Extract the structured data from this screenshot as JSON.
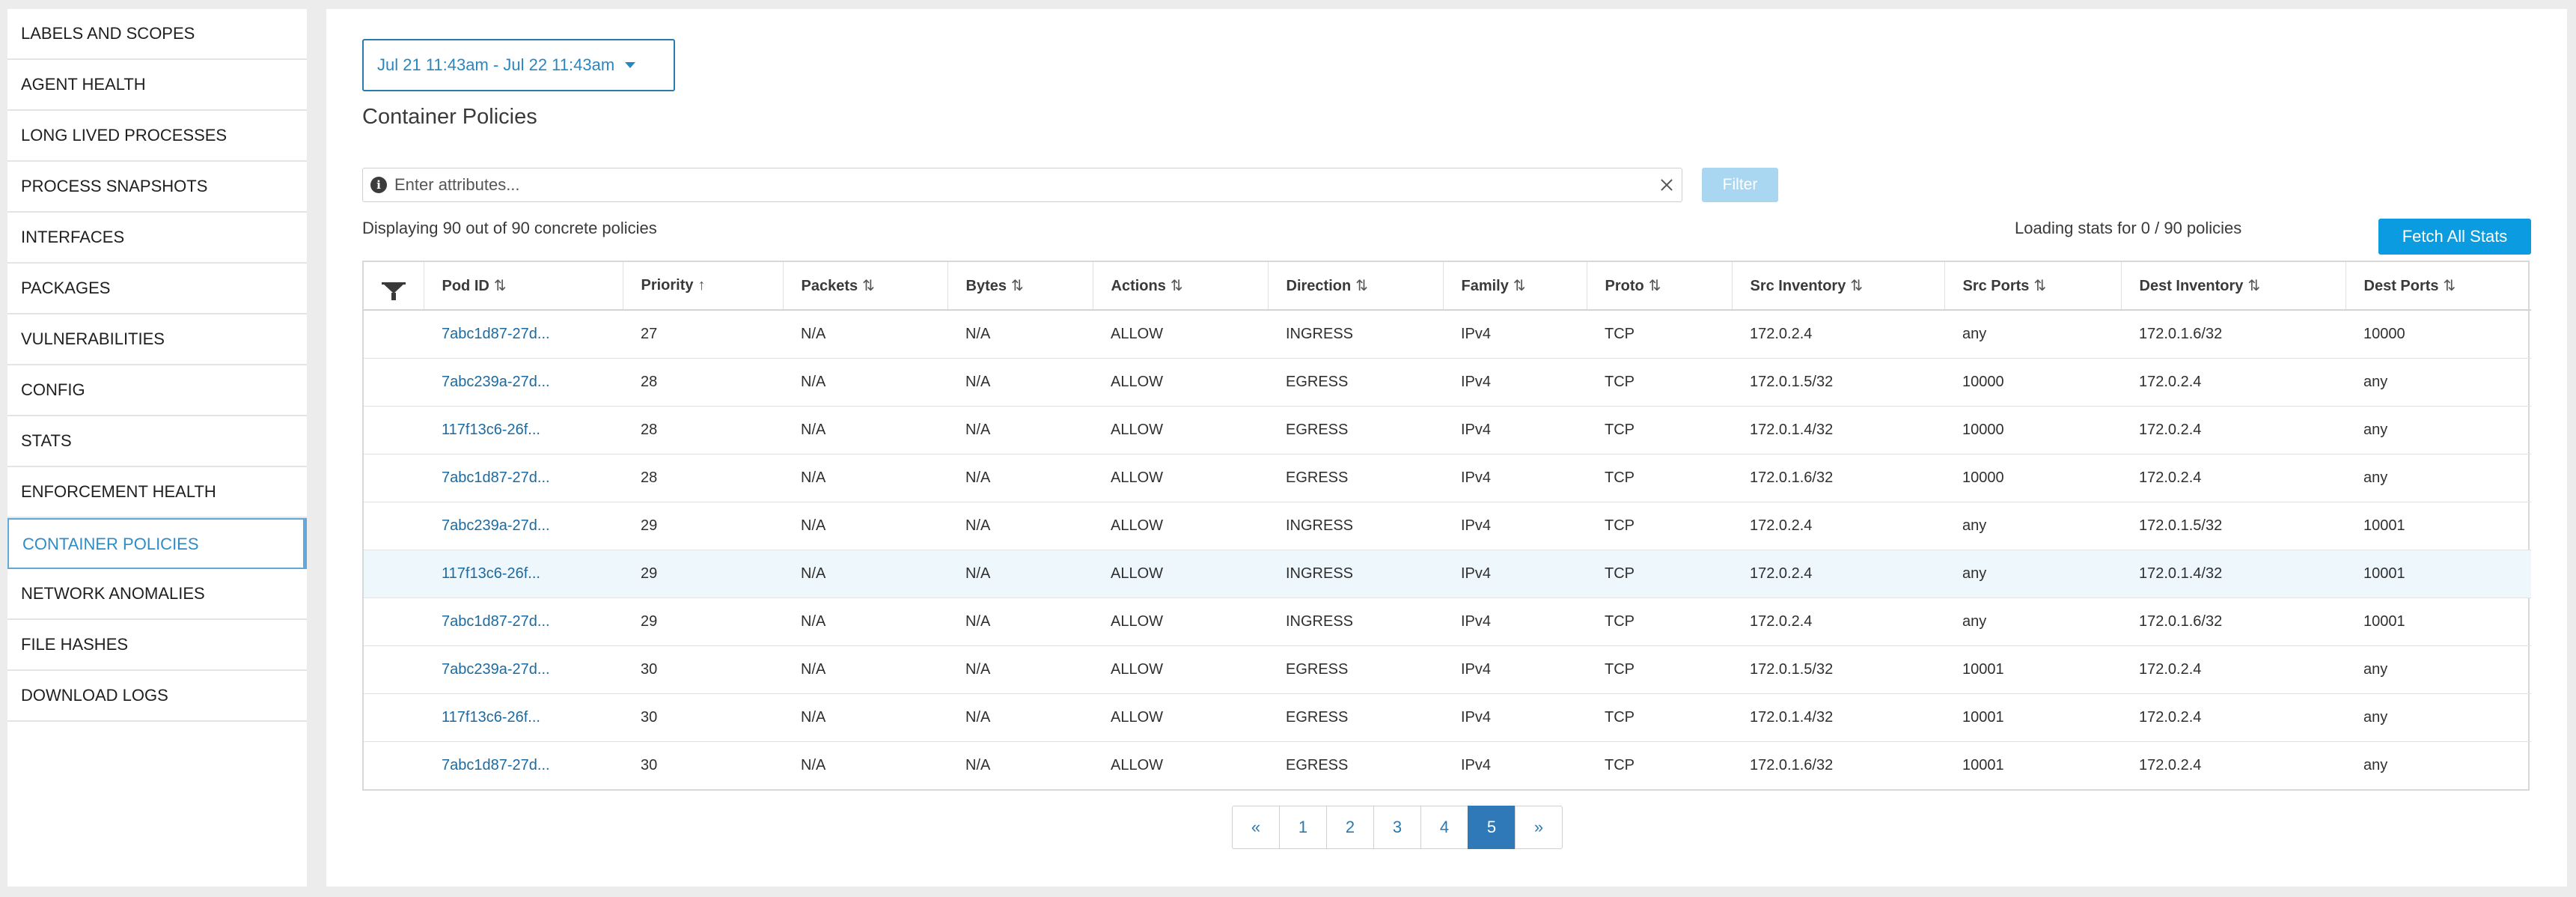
{
  "sidebar": {
    "items": [
      {
        "label": "LABELS AND SCOPES",
        "active": false
      },
      {
        "label": "AGENT HEALTH",
        "active": false
      },
      {
        "label": "LONG LIVED PROCESSES",
        "active": false
      },
      {
        "label": "PROCESS SNAPSHOTS",
        "active": false
      },
      {
        "label": "INTERFACES",
        "active": false
      },
      {
        "label": "PACKAGES",
        "active": false
      },
      {
        "label": "VULNERABILITIES",
        "active": false
      },
      {
        "label": "CONFIG",
        "active": false
      },
      {
        "label": "STATS",
        "active": false
      },
      {
        "label": "ENFORCEMENT HEALTH",
        "active": false
      },
      {
        "label": "CONTAINER POLICIES",
        "active": true
      },
      {
        "label": "NETWORK ANOMALIES",
        "active": false
      },
      {
        "label": "FILE HASHES",
        "active": false
      },
      {
        "label": "DOWNLOAD LOGS",
        "active": false
      }
    ]
  },
  "main": {
    "date_range": "Jul 21 11:43am - Jul 22 11:43am",
    "title": "Container Policies",
    "search_placeholder": "Enter attributes...",
    "filter_label": "Filter",
    "display_count": "Displaying 90 out of 90 concrete policies",
    "loading_stats": "Loading stats for 0 / 90 policies",
    "fetch_label": "Fetch All Stats"
  },
  "table": {
    "columns": [
      {
        "label": "Pod ID",
        "sort": "⇅"
      },
      {
        "label": "Priority",
        "sort": "↑"
      },
      {
        "label": "Packets",
        "sort": "⇅"
      },
      {
        "label": "Bytes",
        "sort": "⇅"
      },
      {
        "label": "Actions",
        "sort": "⇅"
      },
      {
        "label": "Direction",
        "sort": "⇅"
      },
      {
        "label": "Family",
        "sort": "⇅"
      },
      {
        "label": "Proto",
        "sort": "⇅"
      },
      {
        "label": "Src Inventory",
        "sort": "⇅"
      },
      {
        "label": "Src Ports",
        "sort": "⇅"
      },
      {
        "label": "Dest Inventory",
        "sort": "⇅"
      },
      {
        "label": "Dest Ports",
        "sort": "⇅"
      }
    ],
    "rows": [
      {
        "highlight": false,
        "cells": [
          "7abc1d87-27d...",
          "27",
          "N/A",
          "N/A",
          "ALLOW",
          "INGRESS",
          "IPv4",
          "TCP",
          "172.0.2.4",
          "any",
          "172.0.1.6/32",
          "10000"
        ]
      },
      {
        "highlight": false,
        "cells": [
          "7abc239a-27d...",
          "28",
          "N/A",
          "N/A",
          "ALLOW",
          "EGRESS",
          "IPv4",
          "TCP",
          "172.0.1.5/32",
          "10000",
          "172.0.2.4",
          "any"
        ]
      },
      {
        "highlight": false,
        "cells": [
          "117f13c6-26f...",
          "28",
          "N/A",
          "N/A",
          "ALLOW",
          "EGRESS",
          "IPv4",
          "TCP",
          "172.0.1.4/32",
          "10000",
          "172.0.2.4",
          "any"
        ]
      },
      {
        "highlight": false,
        "cells": [
          "7abc1d87-27d...",
          "28",
          "N/A",
          "N/A",
          "ALLOW",
          "EGRESS",
          "IPv4",
          "TCP",
          "172.0.1.6/32",
          "10000",
          "172.0.2.4",
          "any"
        ]
      },
      {
        "highlight": false,
        "cells": [
          "7abc239a-27d...",
          "29",
          "N/A",
          "N/A",
          "ALLOW",
          "INGRESS",
          "IPv4",
          "TCP",
          "172.0.2.4",
          "any",
          "172.0.1.5/32",
          "10001"
        ]
      },
      {
        "highlight": true,
        "cells": [
          "117f13c6-26f...",
          "29",
          "N/A",
          "N/A",
          "ALLOW",
          "INGRESS",
          "IPv4",
          "TCP",
          "172.0.2.4",
          "any",
          "172.0.1.4/32",
          "10001"
        ]
      },
      {
        "highlight": false,
        "cells": [
          "7abc1d87-27d...",
          "29",
          "N/A",
          "N/A",
          "ALLOW",
          "INGRESS",
          "IPv4",
          "TCP",
          "172.0.2.4",
          "any",
          "172.0.1.6/32",
          "10001"
        ]
      },
      {
        "highlight": false,
        "cells": [
          "7abc239a-27d...",
          "30",
          "N/A",
          "N/A",
          "ALLOW",
          "EGRESS",
          "IPv4",
          "TCP",
          "172.0.1.5/32",
          "10001",
          "172.0.2.4",
          "any"
        ]
      },
      {
        "highlight": false,
        "cells": [
          "117f13c6-26f...",
          "30",
          "N/A",
          "N/A",
          "ALLOW",
          "EGRESS",
          "IPv4",
          "TCP",
          "172.0.1.4/32",
          "10001",
          "172.0.2.4",
          "any"
        ]
      },
      {
        "highlight": false,
        "cells": [
          "7abc1d87-27d...",
          "30",
          "N/A",
          "N/A",
          "ALLOW",
          "EGRESS",
          "IPv4",
          "TCP",
          "172.0.1.6/32",
          "10001",
          "172.0.2.4",
          "any"
        ]
      }
    ]
  },
  "pagination": {
    "prev": "«",
    "next": "»",
    "pages": [
      "1",
      "2",
      "3",
      "4",
      "5"
    ],
    "current": "5"
  },
  "colors": {
    "accent": "#2f8dc6",
    "primary_button": "#0b9be0",
    "disabled_button": "#a9d6f0",
    "active_page": "#2f79b8",
    "row_highlight": "#eef7fc"
  }
}
